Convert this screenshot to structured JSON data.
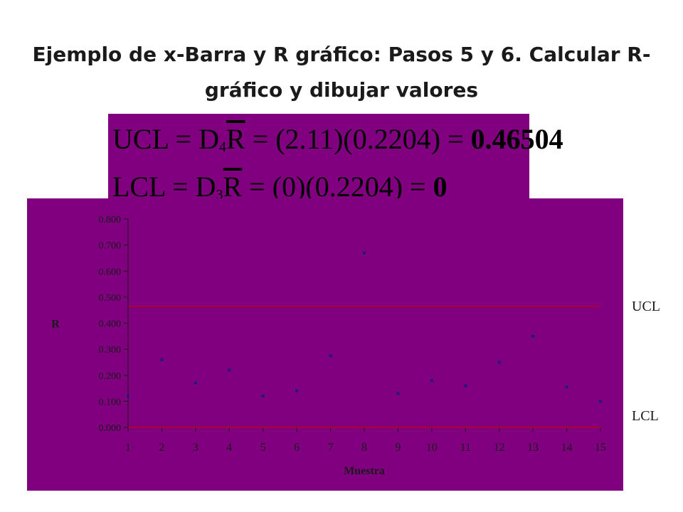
{
  "slide": {
    "title": "Ejemplo de x-Barra y R gráfico: Pasos 5 y 6. Calcular R-gráfico y dibujar valores"
  },
  "formulas": {
    "ucl": {
      "lhs": "UCL",
      "d": "D",
      "d_sub": "4",
      "r": "R",
      "middle": "= (2.11)(0.2204) =",
      "result": "0.46504"
    },
    "lcl": {
      "lhs": "LCL",
      "d": "D",
      "d_sub": "3",
      "r": "R",
      "middle": "= (0)(0.2204) =",
      "result": "0"
    }
  },
  "side_labels": {
    "ucl": "UCL",
    "lcl": "LCL"
  },
  "colors": {
    "background_panel": "#800080",
    "control_line": "#cc0000",
    "points": "#1a1a80"
  },
  "chart_data": {
    "type": "scatter",
    "title": "",
    "xlabel": "Muestra",
    "ylabel": "R",
    "x": [
      1,
      2,
      3,
      4,
      5,
      6,
      7,
      8,
      9,
      10,
      11,
      12,
      13,
      14,
      15
    ],
    "y": [
      0.12,
      0.26,
      0.17,
      0.22,
      0.12,
      0.14,
      0.275,
      0.67,
      0.13,
      0.18,
      0.16,
      0.25,
      0.35,
      0.155,
      0.1
    ],
    "x_ticks": [
      "1",
      "2",
      "3",
      "4",
      "5",
      "6",
      "7",
      "8",
      "9",
      "10",
      "11",
      "12",
      "13",
      "14",
      "15"
    ],
    "y_ticks": [
      "0.000",
      "0.100",
      "0.200",
      "0.300",
      "0.400",
      "0.500",
      "0.600",
      "0.700",
      "0.800"
    ],
    "ylim": [
      0,
      0.8
    ],
    "xlim": [
      1,
      15
    ],
    "control_lines": [
      {
        "name": "UCL",
        "value": 0.46504
      },
      {
        "name": "LCL",
        "value": 0
      }
    ],
    "grid": false
  }
}
